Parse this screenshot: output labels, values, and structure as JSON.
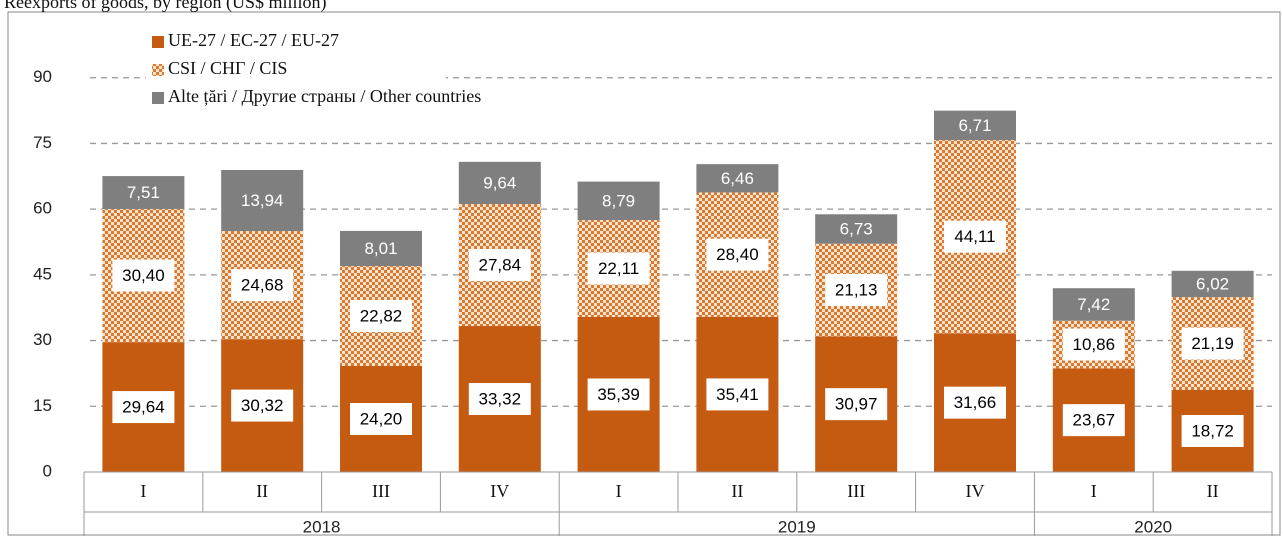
{
  "chart_data": {
    "type": "stacked_bar",
    "title": "Reexports of goods, by region (US$ million)",
    "categories": [
      [
        "I",
        "2018"
      ],
      [
        "II",
        "2018"
      ],
      [
        "III",
        "2018"
      ],
      [
        "IV",
        "2018"
      ],
      [
        "I",
        "2019"
      ],
      [
        "II",
        "2019"
      ],
      [
        "III",
        "2019"
      ],
      [
        "IV",
        "2019"
      ],
      [
        "I",
        "2020"
      ],
      [
        "II",
        "2020"
      ]
    ],
    "series": [
      {
        "name": "UE-27 / EC-27 / EU-27",
        "color": "#c55a11",
        "pattern": "solid",
        "values": [
          29.64,
          30.32,
          24.2,
          33.32,
          35.39,
          35.41,
          30.97,
          31.66,
          23.67,
          18.72
        ],
        "value_labels": [
          "29,64",
          "30,32",
          "24,20",
          "33,32",
          "35,39",
          "35,41",
          "30,97",
          "31,66",
          "23,67",
          "18,72"
        ]
      },
      {
        "name": "CSI / СНГ / CIS",
        "color": "#c55a11",
        "pattern": "dots",
        "values": [
          30.4,
          24.68,
          22.82,
          27.84,
          22.11,
          28.4,
          21.13,
          44.11,
          10.86,
          21.19
        ],
        "value_labels": [
          "30,40",
          "24,68",
          "22,82",
          "27,84",
          "22,11",
          "28,40",
          "21,13",
          "44,11",
          "10,86",
          "21,19"
        ]
      },
      {
        "name": "Alte țări / Другие страны / Other countries",
        "color": "#7f7f7f",
        "pattern": "solid",
        "values": [
          7.51,
          13.94,
          8.01,
          9.64,
          8.79,
          6.46,
          6.73,
          6.71,
          7.42,
          6.02
        ],
        "value_labels": [
          "7,51",
          "13,94",
          "8,01",
          "9,64",
          "8,79",
          "6,46",
          "6,73",
          "6,71",
          "7,42",
          "6,02"
        ]
      }
    ],
    "ylim": [
      0,
      105
    ],
    "yticks": [
      0,
      15,
      30,
      45,
      60,
      75,
      90
    ],
    "grid": true,
    "legend": "top-left"
  }
}
